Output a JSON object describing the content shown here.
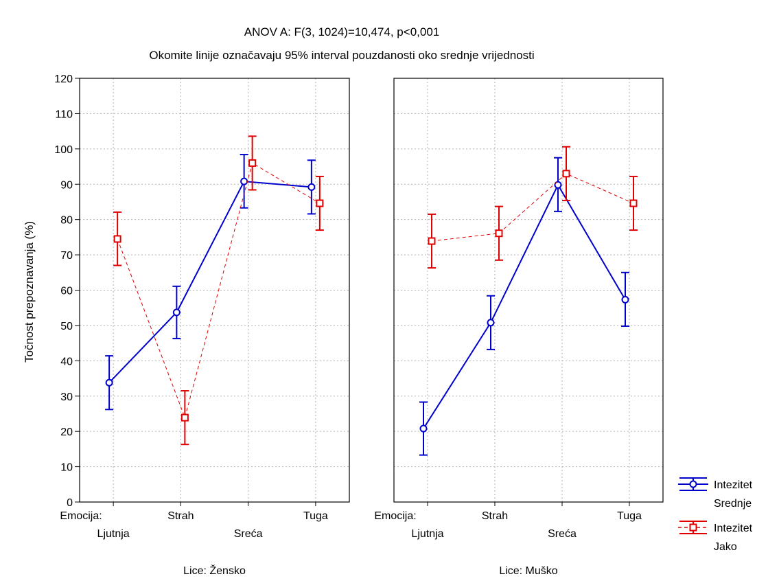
{
  "chart_data": {
    "type": "line",
    "title": "ANOV A: F(3, 1024)=10,474, p<0,001",
    "subtitle": "Okomite linije označavaju 95% interval pouzdanosti oko srednje vrijednosti",
    "ylabel": "Točnost prepoznavanja (%)",
    "ylim": [
      0,
      120
    ],
    "yticks": [
      0,
      10,
      20,
      30,
      40,
      50,
      60,
      70,
      80,
      90,
      100,
      110,
      120
    ],
    "x_factor_label": "Emocija:",
    "categories": [
      "Ljutnja",
      "Strah",
      "Sreća",
      "Tuga"
    ],
    "grid": true,
    "legend_position": "bottom-right",
    "legend_title": "Intezitet",
    "panels": [
      {
        "label": "Lice: Žensko",
        "series": [
          {
            "name": "Srednje",
            "color": "#0000cc",
            "marker": "circle",
            "line_style": "solid",
            "values": [
              33.8,
              53.7,
              90.8,
              89.2
            ],
            "ci_lower": [
              26.2,
              46.3,
              83.3,
              81.6
            ],
            "ci_upper": [
              41.4,
              61.1,
              98.4,
              96.8
            ]
          },
          {
            "name": "Jako",
            "color": "#e00000",
            "marker": "square",
            "line_style": "dashed",
            "values": [
              74.5,
              23.9,
              96.0,
              84.6
            ],
            "ci_lower": [
              67.0,
              16.3,
              88.4,
              77.0
            ],
            "ci_upper": [
              82.1,
              31.5,
              103.6,
              92.2
            ]
          }
        ]
      },
      {
        "label": "Lice: Muško",
        "series": [
          {
            "name": "Srednje",
            "color": "#0000cc",
            "marker": "circle",
            "line_style": "solid",
            "values": [
              20.8,
              50.8,
              89.8,
              57.3
            ],
            "ci_lower": [
              13.3,
              43.2,
              82.3,
              49.8
            ],
            "ci_upper": [
              28.3,
              58.4,
              97.5,
              65.0
            ]
          },
          {
            "name": "Jako",
            "color": "#e00000",
            "marker": "square",
            "line_style": "dashed",
            "values": [
              73.9,
              76.1,
              93.0,
              84.6
            ],
            "ci_lower": [
              66.3,
              68.5,
              85.4,
              77.0
            ],
            "ci_upper": [
              81.5,
              83.7,
              100.6,
              92.2
            ]
          }
        ]
      }
    ]
  }
}
